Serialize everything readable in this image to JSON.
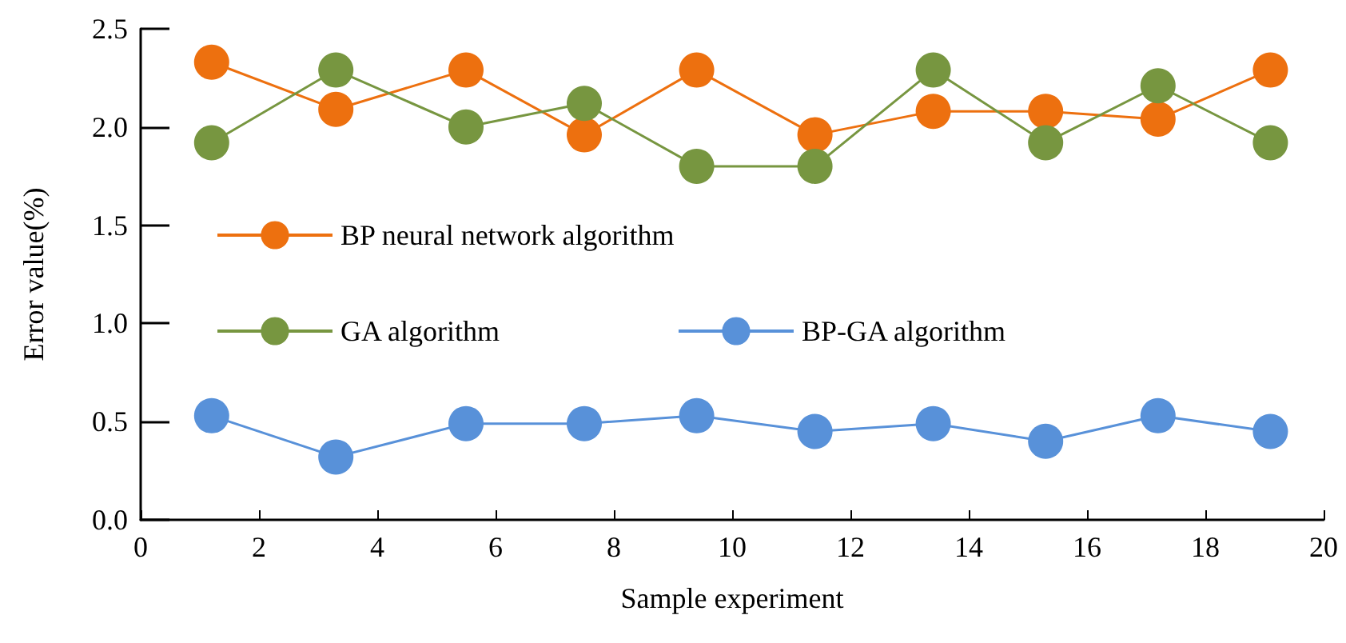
{
  "chart_data": {
    "type": "line",
    "xlabel": "Sample experiment",
    "ylabel": "Error value(%)",
    "x": [
      1.2,
      3.3,
      5.5,
      7.5,
      9.4,
      11.4,
      13.4,
      15.3,
      17.2,
      19.1
    ],
    "series": [
      {
        "name": "BP neural network algorithm",
        "color": "#ed700f",
        "values": [
          2.33,
          2.09,
          2.29,
          1.96,
          2.29,
          1.96,
          2.08,
          2.08,
          2.04,
          2.29
        ]
      },
      {
        "name": "GA algorithm",
        "color": "#779640",
        "values": [
          1.92,
          2.29,
          2.0,
          2.12,
          1.8,
          1.8,
          2.29,
          1.92,
          2.21,
          1.92
        ]
      },
      {
        "name": "BP-GA algorithm",
        "color": "#5891d9",
        "values": [
          0.53,
          0.32,
          0.49,
          0.49,
          0.53,
          0.45,
          0.49,
          0.4,
          0.53,
          0.45
        ]
      }
    ],
    "xlim": [
      0,
      20
    ],
    "xticks": [
      0,
      2,
      4,
      6,
      8,
      10,
      12,
      14,
      16,
      18,
      20
    ],
    "ylim": [
      0,
      2.5
    ],
    "yticks": [
      {
        "value": 0,
        "label": "0.0"
      },
      {
        "value": 0.5,
        "label": "0.5"
      },
      {
        "value": 1,
        "label": "1.0"
      },
      {
        "value": 1.5,
        "label": "1.5"
      },
      {
        "value": 2,
        "label": "2.0"
      },
      {
        "value": 2.5,
        "label": "2.5"
      }
    ],
    "grid": false,
    "legend": "left",
    "marker": "circle",
    "line_style": "solid"
  }
}
